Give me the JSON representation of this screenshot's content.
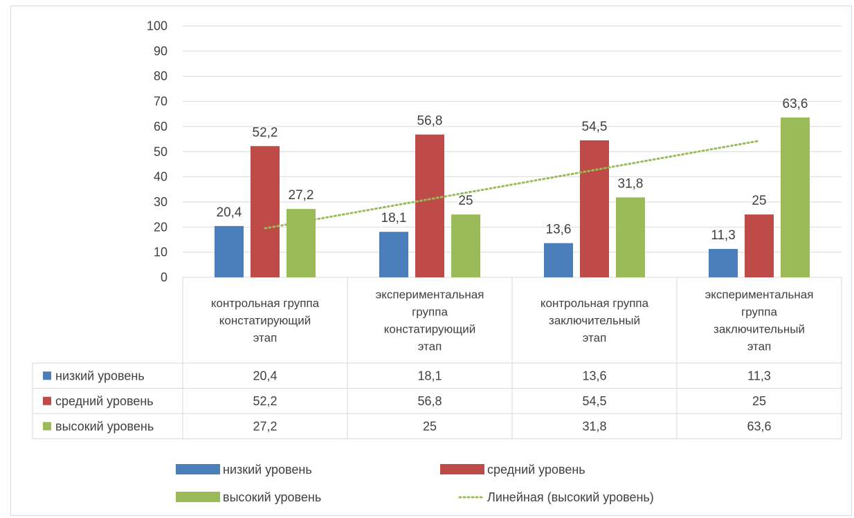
{
  "chart_data": {
    "type": "bar",
    "categories": [
      [
        "контрольная группа",
        "констатирующий",
        "этап"
      ],
      [
        "экспериментальная",
        "группа",
        "констатирующий",
        "этап"
      ],
      [
        "контрольная группа",
        "заключительный",
        "этап"
      ],
      [
        "экспериментальная",
        "группа",
        "заключительный",
        "этап"
      ]
    ],
    "series": [
      {
        "name": "низкий уровень",
        "color": "#4a7ebb",
        "values": [
          20.4,
          18.1,
          13.6,
          11.3
        ],
        "labels": [
          "20,4",
          "18,1",
          "13,6",
          "11,3"
        ]
      },
      {
        "name": "средний уровень",
        "color": "#be4b48",
        "values": [
          52.2,
          56.8,
          54.5,
          25
        ],
        "labels": [
          "52,2",
          "56,8",
          "54,5",
          "25"
        ]
      },
      {
        "name": "высокий уровень",
        "color": "#9bbb59",
        "values": [
          27.2,
          25,
          31.8,
          63.6
        ],
        "labels": [
          "27,2",
          "25",
          "31,8",
          "63,6"
        ]
      }
    ],
    "trendline": {
      "name": "Линейная (высокий уровень)",
      "series_index": 2,
      "color": "#9bbb59",
      "style": "dotted"
    },
    "ylim": [
      0,
      100
    ],
    "yticks": [
      0,
      10,
      20,
      30,
      40,
      50,
      60,
      70,
      80,
      90,
      100
    ],
    "grid": true,
    "data_table": true,
    "legend_position": "bottom",
    "title": "",
    "xlabel": "",
    "ylabel": ""
  }
}
